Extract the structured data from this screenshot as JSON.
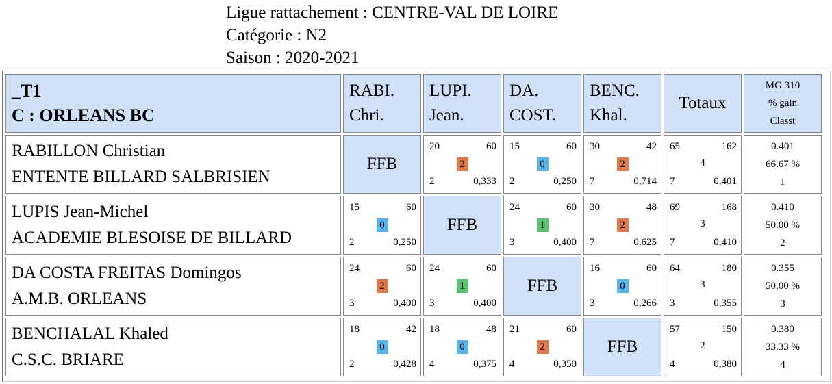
{
  "header": {
    "ligue": "Ligue rattachement : CENTRE-VAL DE LOIRE",
    "categorie": "Catégorie : N2",
    "saison": "Saison : 2020-2021"
  },
  "colors": {
    "header_bg": "#cfe0f7",
    "win": "#e0794c",
    "draw": "#5bc06f",
    "loss": "#5ab4ec"
  },
  "table": {
    "team_line1": "_T1",
    "team_line2": "C : ORLEANS BC",
    "columns": [
      {
        "l1": "RABI.",
        "l2": "Chri."
      },
      {
        "l1": "LUPI.",
        "l2": "Jean."
      },
      {
        "l1": "DA.",
        "l2": "COST."
      },
      {
        "l1": "BENC.",
        "l2": "Khal."
      }
    ],
    "totals_label": "Totaux",
    "mg": {
      "l1": "MG 310",
      "l2": "% gain",
      "l3": "Classt"
    },
    "ffb_label": "FFB",
    "rows": [
      {
        "name": "RABILLON Christian",
        "club": "ENTENTE BILLARD SALBRISIEN",
        "cells": [
          null,
          {
            "pts": "20",
            "dist": "60",
            "score": "2",
            "rep": "2",
            "moy": "0,333",
            "color": "#e0794c"
          },
          {
            "pts": "15",
            "dist": "60",
            "score": "0",
            "rep": "2",
            "moy": "0,250",
            "color": "#5ab4ec"
          },
          {
            "pts": "30",
            "dist": "42",
            "score": "2",
            "rep": "7",
            "moy": "0,714",
            "color": "#e0794c"
          }
        ],
        "totals": {
          "pts": "65",
          "dist": "162",
          "score": "4",
          "rep": "7",
          "moy": "0,401"
        },
        "mg": {
          "moy": "0.401",
          "pct": "66.67 %",
          "rank": "1"
        }
      },
      {
        "name": "LUPIS Jean-Michel",
        "club": "ACADEMIE BLESOISE DE BILLARD",
        "cells": [
          {
            "pts": "15",
            "dist": "60",
            "score": "0",
            "rep": "2",
            "moy": "0,250",
            "color": "#5ab4ec"
          },
          null,
          {
            "pts": "24",
            "dist": "60",
            "score": "1",
            "rep": "3",
            "moy": "0,400",
            "color": "#5bc06f"
          },
          {
            "pts": "30",
            "dist": "48",
            "score": "2",
            "rep": "7",
            "moy": "0,625",
            "color": "#e0794c"
          }
        ],
        "totals": {
          "pts": "69",
          "dist": "168",
          "score": "3",
          "rep": "7",
          "moy": "0,410"
        },
        "mg": {
          "moy": "0.410",
          "pct": "50.00 %",
          "rank": "2"
        }
      },
      {
        "name": "DA COSTA FREITAS Domingos",
        "club": "A.M.B. ORLEANS",
        "cells": [
          {
            "pts": "24",
            "dist": "60",
            "score": "2",
            "rep": "3",
            "moy": "0,400",
            "color": "#e0794c"
          },
          {
            "pts": "24",
            "dist": "60",
            "score": "1",
            "rep": "3",
            "moy": "0,400",
            "color": "#5bc06f"
          },
          null,
          {
            "pts": "16",
            "dist": "60",
            "score": "0",
            "rep": "3",
            "moy": "0,266",
            "color": "#5ab4ec"
          }
        ],
        "totals": {
          "pts": "64",
          "dist": "180",
          "score": "3",
          "rep": "3",
          "moy": "0,355"
        },
        "mg": {
          "moy": "0.355",
          "pct": "50.00 %",
          "rank": "3"
        }
      },
      {
        "name": "BENCHALAL Khaled",
        "club": "C.S.C. BRIARE",
        "cells": [
          {
            "pts": "18",
            "dist": "42",
            "score": "0",
            "rep": "2",
            "moy": "0,428",
            "color": "#5ab4ec"
          },
          {
            "pts": "18",
            "dist": "48",
            "score": "0",
            "rep": "4",
            "moy": "0,375",
            "color": "#5ab4ec"
          },
          {
            "pts": "21",
            "dist": "60",
            "score": "2",
            "rep": "4",
            "moy": "0,350",
            "color": "#e0794c"
          },
          null
        ],
        "totals": {
          "pts": "57",
          "dist": "150",
          "score": "2",
          "rep": "4",
          "moy": "0,380"
        },
        "mg": {
          "moy": "0.380",
          "pct": "33.33 %",
          "rank": "4"
        }
      }
    ]
  }
}
